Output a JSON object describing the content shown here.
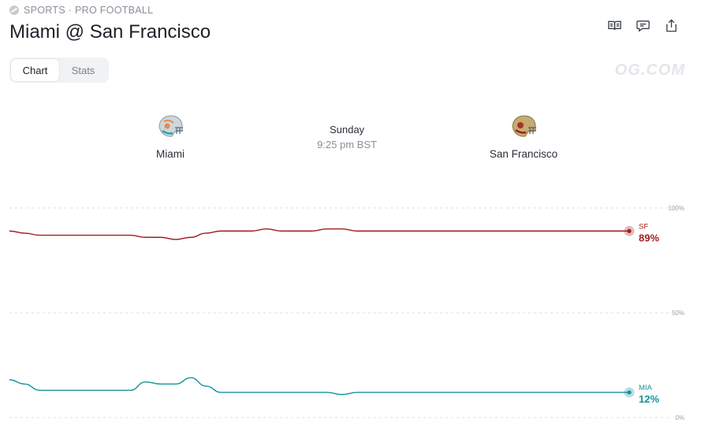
{
  "header": {
    "breadcrumb": "SPORTS · PRO FOOTBALL",
    "title": "Miami @ San Francisco",
    "watermark": "OG.COM"
  },
  "actions": [
    {
      "name": "rules-icon"
    },
    {
      "name": "comments-icon"
    },
    {
      "name": "share-icon"
    }
  ],
  "tabs": [
    {
      "label": "Chart",
      "active": true
    },
    {
      "label": "Stats",
      "active": false
    }
  ],
  "game": {
    "day": "Sunday",
    "time": "9:25 pm BST",
    "away": {
      "name": "Miami",
      "abbr": "MIA",
      "helmet_color": "#2f9ea8"
    },
    "home": {
      "name": "San Francisco",
      "abbr": "SF",
      "helmet_color": "#b3985c"
    }
  },
  "colors": {
    "sf": "#a31d1d",
    "mia": "#14939a",
    "grid": "#dadde2",
    "tick": "#9a9ea6"
  },
  "chart_data": {
    "type": "line",
    "ylim": [
      0,
      100
    ],
    "yticks": [
      "100%",
      "50%",
      "0%"
    ],
    "grid": true,
    "series": [
      {
        "name": "SF",
        "label_value": "89%",
        "values": [
          89,
          88,
          87,
          87,
          87,
          87,
          87,
          87,
          87,
          86,
          86,
          85,
          86,
          88,
          89,
          89,
          89,
          90,
          89,
          89,
          89,
          90,
          90,
          89,
          89,
          89,
          89,
          89,
          89,
          89,
          89,
          89,
          89,
          89,
          89,
          89,
          89,
          89,
          89,
          89,
          89,
          89
        ]
      },
      {
        "name": "MIA",
        "label_value": "12%",
        "values": [
          18,
          16,
          13,
          13,
          13,
          13,
          13,
          13,
          13,
          17,
          16,
          16,
          19,
          15,
          12,
          12,
          12,
          12,
          12,
          12,
          12,
          12,
          11,
          12,
          12,
          12,
          12,
          12,
          12,
          12,
          12,
          12,
          12,
          12,
          12,
          12,
          12,
          12,
          12,
          12,
          12,
          12
        ]
      }
    ]
  }
}
